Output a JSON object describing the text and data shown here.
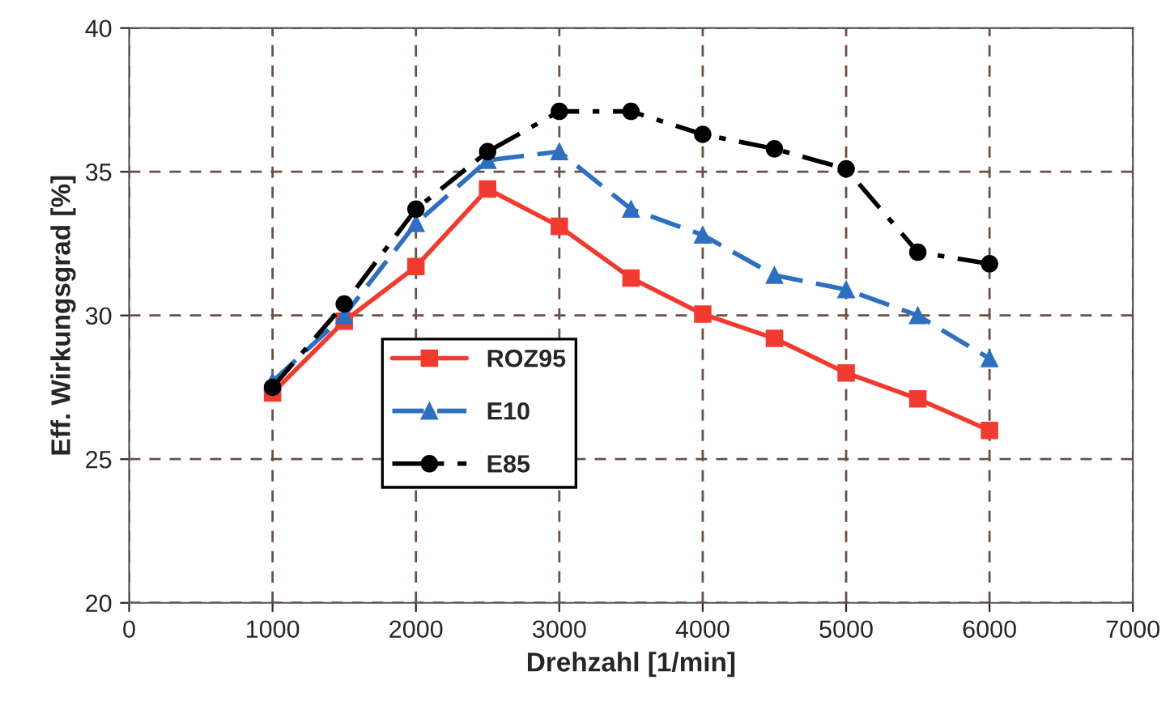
{
  "chart_data": {
    "type": "line",
    "xlabel": "Drehzahl [1/min]",
    "ylabel": "Eff. Wirkungsgrad [%]",
    "x": [
      1000,
      1500,
      2000,
      2500,
      3000,
      3500,
      4000,
      4500,
      5000,
      5500,
      6000
    ],
    "series": [
      {
        "name": "ROZ95",
        "color": "#f23b30",
        "marker": "square",
        "line_style": "solid",
        "values": [
          27.3,
          29.8,
          31.7,
          34.4,
          33.1,
          31.3,
          30.05,
          29.2,
          28.0,
          27.1,
          26.0
        ]
      },
      {
        "name": "E10",
        "color": "#2e6fc0",
        "marker": "triangle",
        "line_style": "dashed",
        "values": [
          27.7,
          30.0,
          33.2,
          35.4,
          35.7,
          33.7,
          32.8,
          31.4,
          30.9,
          30.0,
          28.5
        ]
      },
      {
        "name": "E85",
        "color": "#000000",
        "marker": "circle",
        "line_style": "dashdot",
        "values": [
          27.5,
          30.4,
          33.7,
          35.7,
          37.1,
          37.1,
          36.3,
          35.8,
          35.1,
          32.2,
          31.8
        ]
      }
    ],
    "xlim": [
      0,
      7000
    ],
    "xticks": [
      0,
      1000,
      2000,
      3000,
      4000,
      5000,
      6000,
      7000
    ],
    "ylim": [
      20,
      40
    ],
    "yticks": [
      20,
      25,
      30,
      35,
      40
    ],
    "grid": true,
    "legend": "left"
  }
}
